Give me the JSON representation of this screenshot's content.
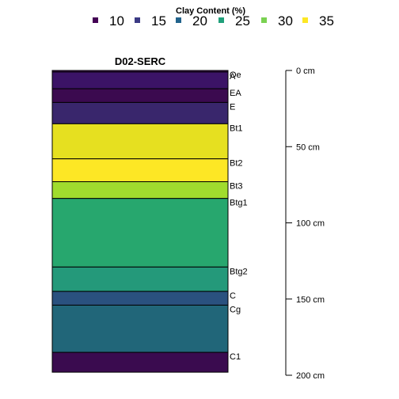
{
  "chart_data": {
    "type": "bar",
    "legend": {
      "title": "Clay Content (%)",
      "placement": "top",
      "entries": [
        {
          "label": "10",
          "color": "#440154"
        },
        {
          "label": "15",
          "color": "#3b3a84"
        },
        {
          "label": "20",
          "color": "#22638c"
        },
        {
          "label": "25",
          "color": "#21a07b"
        },
        {
          "label": "30",
          "color": "#7ad151"
        },
        {
          "label": "35",
          "color": "#fde725"
        }
      ]
    },
    "profile": {
      "title": "D02-SERC",
      "horizons": [
        {
          "name": "Oe",
          "top": 0,
          "bottom": 1,
          "color": "#3d0a4e"
        },
        {
          "name": "A",
          "top": 1,
          "bottom": 12,
          "color": "#3b1366"
        },
        {
          "name": "EA",
          "top": 12,
          "bottom": 21,
          "color": "#3b0a4f"
        },
        {
          "name": "E",
          "top": 21,
          "bottom": 35,
          "color": "#39266c"
        },
        {
          "name": "Bt1",
          "top": 35,
          "bottom": 58,
          "color": "#e6e020"
        },
        {
          "name": "Bt2",
          "top": 58,
          "bottom": 73,
          "color": "#fde725"
        },
        {
          "name": "Bt3",
          "top": 73,
          "bottom": 84,
          "color": "#a0dc2e"
        },
        {
          "name": "Btg1",
          "top": 84,
          "bottom": 129,
          "color": "#27a76e"
        },
        {
          "name": "Btg2",
          "top": 129,
          "bottom": 145,
          "color": "#24997a"
        },
        {
          "name": "C",
          "top": 145,
          "bottom": 154,
          "color": "#2a517f"
        },
        {
          "name": "Cg",
          "top": 154,
          "bottom": 185,
          "color": "#216679"
        },
        {
          "name": "C1",
          "top": 185,
          "bottom": 198,
          "color": "#3a0b4f"
        }
      ]
    },
    "depth_axis": {
      "range": [
        0,
        200
      ],
      "ticks": [
        {
          "value": 0,
          "label": "0 cm"
        },
        {
          "value": 50,
          "label": "50 cm"
        },
        {
          "value": 100,
          "label": "100 cm"
        },
        {
          "value": 150,
          "label": "150 cm"
        },
        {
          "value": 200,
          "label": "200 cm"
        }
      ]
    }
  }
}
